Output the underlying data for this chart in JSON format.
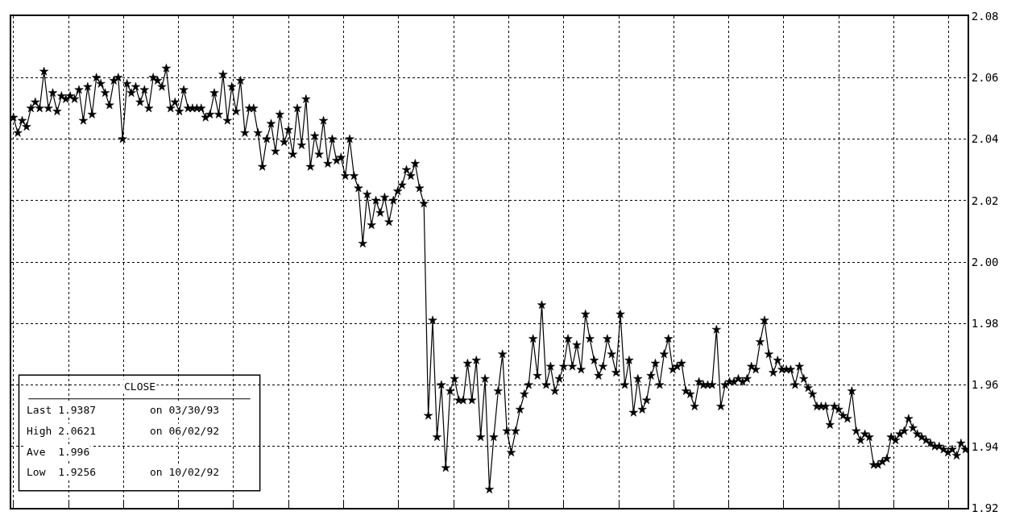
{
  "chart_data": {
    "type": "line",
    "marker": "star",
    "grid": true,
    "tick_labels": "y",
    "ylim": [
      1.92,
      2.08
    ],
    "yticks": [
      1.92,
      1.94,
      1.96,
      1.98,
      {
        "value": 2.0,
        "label": "2.00"
      },
      2.02,
      2.04,
      2.06,
      2.08
    ],
    "annotations": [
      "CLOSE",
      "Last 1.9387",
      "on 03/30/93",
      "High 2.0621",
      "on 06/02/92",
      "Ave  1.996",
      "Low  1.9256",
      "on 10/02/92"
    ],
    "series": [
      {
        "color": "#000000",
        "values": [
          2.047,
          2.042,
          2.046,
          2.044,
          2.05,
          2.052,
          2.05,
          2.062,
          2.05,
          2.055,
          2.049,
          2.054,
          2.053,
          2.054,
          2.053,
          2.056,
          2.046,
          2.057,
          2.048,
          2.06,
          2.058,
          2.055,
          2.051,
          2.059,
          2.06,
          2.04,
          2.058,
          2.055,
          2.057,
          2.052,
          2.056,
          2.05,
          2.06,
          2.059,
          2.057,
          2.063,
          2.05,
          2.052,
          2.049,
          2.056,
          2.05,
          2.05,
          2.05,
          2.05,
          2.047,
          2.048,
          2.055,
          2.048,
          2.061,
          2.046,
          2.057,
          2.049,
          2.059,
          2.042,
          2.05,
          2.05,
          2.042,
          2.031,
          2.04,
          2.045,
          2.036,
          2.048,
          2.039,
          2.043,
          2.035,
          2.05,
          2.038,
          2.053,
          2.031,
          2.041,
          2.035,
          2.046,
          2.032,
          2.04,
          2.033,
          2.034,
          2.028,
          2.04,
          2.028,
          2.024,
          2.006,
          2.022,
          2.012,
          2.02,
          2.016,
          2.021,
          2.013,
          2.02,
          2.023,
          2.025,
          2.03,
          2.028,
          2.032,
          2.024,
          2.019,
          1.95,
          1.981,
          1.943,
          1.96,
          1.933,
          1.958,
          1.962,
          1.955,
          1.955,
          1.967,
          1.955,
          1.968,
          1.943,
          1.962,
          1.926,
          1.943,
          1.958,
          1.97,
          1.945,
          1.938,
          1.945,
          1.952,
          1.957,
          1.96,
          1.975,
          1.963,
          1.986,
          1.96,
          1.966,
          1.958,
          1.962,
          1.966,
          1.975,
          1.966,
          1.973,
          1.965,
          1.983,
          1.975,
          1.968,
          1.963,
          1.966,
          1.975,
          1.97,
          1.964,
          1.983,
          1.96,
          1.968,
          1.951,
          1.962,
          1.952,
          1.955,
          1.963,
          1.967,
          1.96,
          1.97,
          1.975,
          1.965,
          1.966,
          1.967,
          1.958,
          1.957,
          1.953,
          1.961,
          1.96,
          1.96,
          1.96,
          1.978,
          1.953,
          1.96,
          1.961,
          1.961,
          1.962,
          1.961,
          1.962,
          1.966,
          1.965,
          1.974,
          1.981,
          1.97,
          1.964,
          1.968,
          1.965,
          1.965,
          1.965,
          1.96,
          1.966,
          1.962,
          1.959,
          1.957,
          1.953,
          1.953,
          1.953,
          1.947,
          1.953,
          1.952,
          1.95,
          1.949,
          1.958,
          1.945,
          1.942,
          1.944,
          1.943,
          1.934,
          1.934,
          1.935,
          1.936,
          1.943,
          1.942,
          1.944,
          1.945,
          1.949,
          1.946,
          1.944,
          1.943,
          1.942,
          1.941,
          1.94,
          1.94,
          1.939,
          1.938,
          1.939,
          1.937,
          1.941,
          1.939
        ]
      }
    ]
  }
}
